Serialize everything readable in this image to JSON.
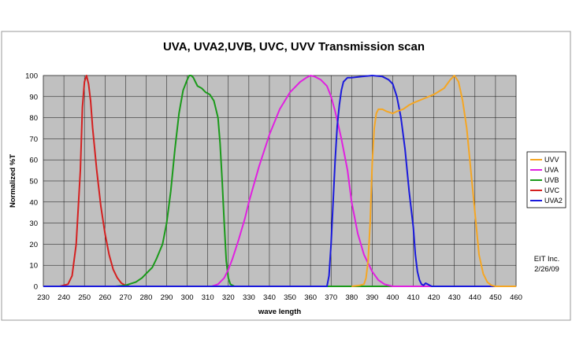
{
  "chart_data": {
    "type": "line",
    "title": "UVA, UVA2,UVB, UVC, UVV Transmission scan",
    "xlabel": "wave length",
    "ylabel": "Normalized %T",
    "xlim": [
      230,
      460
    ],
    "ylim": [
      0,
      100
    ],
    "xticks": [
      230,
      240,
      250,
      260,
      270,
      280,
      290,
      300,
      310,
      320,
      330,
      340,
      350,
      360,
      370,
      380,
      390,
      400,
      410,
      420,
      430,
      440,
      450,
      460
    ],
    "yticks": [
      0,
      10,
      20,
      30,
      40,
      50,
      60,
      70,
      80,
      90,
      100
    ],
    "grid": true,
    "plot_background": "#c0c0c0",
    "legend_position": "right",
    "annotation": [
      "EIT Inc.",
      "2/26/09"
    ],
    "series": [
      {
        "name": "UVV",
        "color": "#f5a623",
        "x": [
          380,
          384,
          386,
          387,
          388,
          389,
          390,
          391,
          392,
          393,
          395,
          397,
          400,
          402,
          405,
          408,
          410,
          415,
          420,
          425,
          428,
          430,
          432,
          434,
          436,
          438,
          440,
          442,
          444,
          446,
          448,
          450,
          460
        ],
        "y": [
          0,
          0.5,
          1,
          4,
          12,
          30,
          58,
          75,
          82,
          84,
          84,
          83,
          82,
          83,
          84,
          86,
          87,
          89,
          91,
          94,
          98,
          100,
          97,
          88,
          75,
          55,
          35,
          15,
          6,
          2,
          0.5,
          0,
          0
        ]
      },
      {
        "name": "UVA",
        "color": "#e020e0",
        "x": [
          300,
          312,
          315,
          318,
          320,
          322,
          325,
          328,
          330,
          335,
          340,
          345,
          350,
          355,
          358,
          360,
          362,
          365,
          368,
          370,
          372,
          375,
          378,
          380,
          383,
          386,
          390,
          393,
          396,
          400,
          410,
          460
        ],
        "y": [
          0,
          0,
          1,
          4,
          8,
          13,
          22,
          32,
          40,
          57,
          72,
          84,
          92,
          97,
          99,
          100,
          99.5,
          98,
          95,
          90,
          83,
          70,
          55,
          40,
          25,
          15,
          7,
          3,
          1,
          0,
          0,
          0
        ]
      },
      {
        "name": "UVB",
        "color": "#1a9a1a",
        "x": [
          250,
          265,
          270,
          275,
          278,
          280,
          283,
          285,
          288,
          290,
          292,
          294,
          296,
          298,
          300,
          301,
          302,
          303,
          304,
          305,
          307,
          309,
          311,
          313,
          315,
          316,
          317,
          318,
          319,
          320,
          321,
          322,
          323,
          330,
          460
        ],
        "y": [
          0,
          0,
          0.5,
          2,
          4,
          6,
          9,
          13,
          20,
          30,
          45,
          65,
          82,
          93,
          98,
          100,
          100,
          99,
          97,
          95,
          94,
          92,
          91,
          88,
          80,
          68,
          50,
          30,
          12,
          4,
          1,
          0.5,
          0,
          0,
          0
        ]
      },
      {
        "name": "UVC",
        "color": "#d42020",
        "x": [
          230,
          238,
          242,
          244,
          246,
          248,
          249,
          250,
          251,
          252,
          253,
          254,
          256,
          258,
          260,
          262,
          264,
          266,
          268,
          270,
          272,
          275,
          280,
          460
        ],
        "y": [
          0,
          0,
          1,
          5,
          20,
          55,
          85,
          97,
          100,
          96,
          88,
          75,
          55,
          38,
          25,
          15,
          8,
          4,
          1.5,
          0.5,
          0,
          0,
          0,
          0
        ]
      },
      {
        "name": "UVA2",
        "color": "#1a1adc",
        "x": [
          230,
          368,
          369,
          370,
          371,
          372,
          373,
          374,
          375,
          376,
          378,
          380,
          385,
          390,
          395,
          398,
          400,
          402,
          404,
          406,
          408,
          410,
          411,
          412,
          413,
          414,
          415,
          416,
          417,
          418,
          419,
          420,
          460
        ],
        "y": [
          0,
          0,
          5,
          20,
          40,
          60,
          76,
          86,
          93,
          97,
          99,
          99,
          99.5,
          100,
          99.5,
          98,
          96,
          90,
          80,
          65,
          45,
          28,
          15,
          7,
          3,
          1,
          0.5,
          1.5,
          1,
          0.5,
          0,
          0,
          0
        ]
      }
    ]
  }
}
